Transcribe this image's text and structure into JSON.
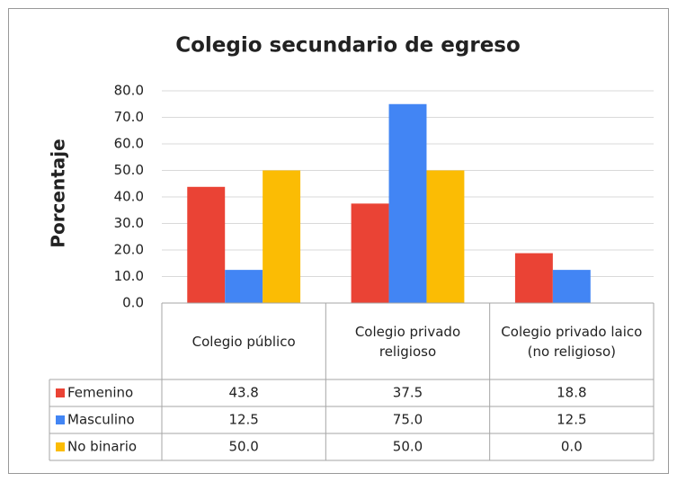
{
  "chart_data": {
    "type": "bar",
    "title": "Colegio secundario de egreso",
    "y_label": "Porcentaje",
    "categories": [
      "Colegio público",
      "Colegio privado religioso",
      "Colegio privado laico (no religioso)"
    ],
    "series": [
      {
        "name": "Femenino",
        "color": "#ea4335",
        "values": [
          43.8,
          37.5,
          18.8
        ],
        "value_labels": [
          "43.8",
          "37.5",
          "18.8"
        ]
      },
      {
        "name": "Masculino",
        "color": "#4285f4",
        "values": [
          12.5,
          75.0,
          12.5
        ],
        "value_labels": [
          "12.5",
          "75.0",
          "12.5"
        ]
      },
      {
        "name": "No binario",
        "color": "#fbbc04",
        "values": [
          50.0,
          50.0,
          0.0
        ],
        "value_labels": [
          "50.0",
          "50.0",
          "0.0"
        ]
      }
    ],
    "ylim": [
      0,
      80
    ],
    "yticks": [
      {
        "value": 0,
        "label": "0.0"
      },
      {
        "value": 10,
        "label": "10.0"
      },
      {
        "value": 20,
        "label": "20.0"
      },
      {
        "value": 30,
        "label": "30.0"
      },
      {
        "value": 40,
        "label": "40.0"
      },
      {
        "value": 50,
        "label": "50.0"
      },
      {
        "value": 60,
        "label": "60.0"
      },
      {
        "value": 70,
        "label": "70.0"
      },
      {
        "value": 80,
        "label": "80.0"
      }
    ],
    "grid": true
  }
}
